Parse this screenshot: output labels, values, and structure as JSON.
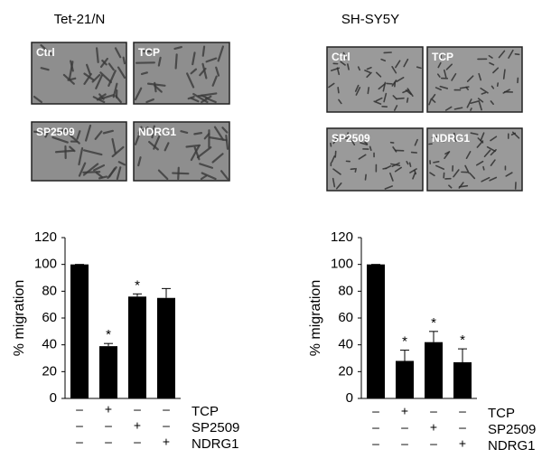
{
  "panels": [
    {
      "title": "Tet-21/N",
      "images": [
        "Ctrl",
        "TCP",
        "SP2509",
        "NDRG1"
      ]
    },
    {
      "title": "SH-SY5Y",
      "images": [
        "Ctrl",
        "TCP",
        "SP2509",
        "NDRG1"
      ]
    }
  ],
  "chart_data": [
    {
      "type": "bar",
      "y_label": "% migration",
      "values": [
        100,
        39,
        76,
        75
      ],
      "errors": [
        0,
        2,
        2,
        7
      ],
      "annotations": [
        null,
        "*",
        "*",
        null
      ],
      "color": "#000000",
      "ylim": [
        0,
        120
      ],
      "yticks": [
        0,
        20,
        40,
        60,
        80,
        100,
        120
      ],
      "treatments": [
        {
          "name": "TCP",
          "signs": [
            "–",
            "+",
            "–",
            "–"
          ]
        },
        {
          "name": "SP2509",
          "signs": [
            "–",
            "–",
            "+",
            "–"
          ]
        },
        {
          "name": "NDRG1",
          "signs": [
            "–",
            "–",
            "–",
            "+"
          ]
        }
      ]
    },
    {
      "type": "bar",
      "y_label": "% migration",
      "values": [
        100,
        28,
        42,
        27
      ],
      "errors": [
        0,
        8,
        8,
        10
      ],
      "annotations": [
        null,
        "*",
        "*",
        "*"
      ],
      "color": "#000000",
      "ylim": [
        0,
        120
      ],
      "yticks": [
        0,
        20,
        40,
        60,
        80,
        100,
        120
      ],
      "treatments": [
        {
          "name": "TCP",
          "signs": [
            "–",
            "+",
            "–",
            "–"
          ]
        },
        {
          "name": "SP2509",
          "signs": [
            "–",
            "–",
            "+",
            "–"
          ]
        },
        {
          "name": "NDRG1",
          "signs": [
            "–",
            "–",
            "–",
            "+"
          ]
        }
      ]
    }
  ]
}
